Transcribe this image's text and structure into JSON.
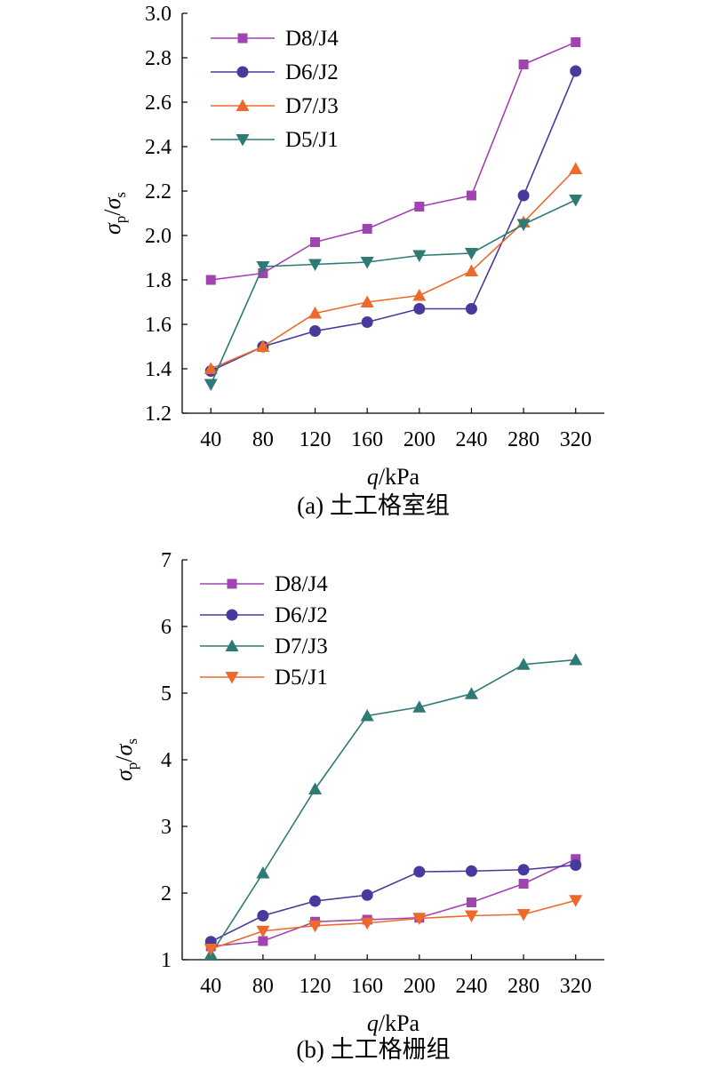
{
  "chart_data": [
    {
      "type": "line",
      "caption": "(a) 土工格室组",
      "xlabel": "q/kPa",
      "ylabel": "σp/σs",
      "categories": [
        40,
        80,
        120,
        160,
        200,
        240,
        280,
        320
      ],
      "ylim": [
        1.2,
        3.0
      ],
      "yticks": [
        "1.2",
        "1.4",
        "1.6",
        "1.8",
        "2.0",
        "2.2",
        "2.4",
        "2.6",
        "2.8",
        "3.0"
      ],
      "legend_position": "top-left",
      "grid": false,
      "series": [
        {
          "name": "D8/J4",
          "color": "#a044b0",
          "marker": "square",
          "values": [
            1.8,
            1.83,
            1.97,
            2.03,
            2.13,
            2.18,
            2.77,
            2.87
          ]
        },
        {
          "name": "D6/J2",
          "color": "#483a9c",
          "marker": "circle",
          "values": [
            1.39,
            1.5,
            1.57,
            1.61,
            1.67,
            1.67,
            2.18,
            2.74
          ]
        },
        {
          "name": "D7/J3",
          "color": "#ec6a2b",
          "marker": "triangle-up",
          "values": [
            1.4,
            1.5,
            1.65,
            1.7,
            1.73,
            1.84,
            2.06,
            2.3
          ]
        },
        {
          "name": "D5/J1",
          "color": "#2e7a74",
          "marker": "triangle-down",
          "values": [
            1.33,
            1.86,
            1.87,
            1.88,
            1.91,
            1.92,
            2.05,
            2.16
          ]
        }
      ]
    },
    {
      "type": "line",
      "caption": "(b) 土工格栅组",
      "xlabel": "q/kPa",
      "ylabel": "σp/σs",
      "categories": [
        40,
        80,
        120,
        160,
        200,
        240,
        280,
        320
      ],
      "ylim": [
        1,
        7
      ],
      "yticks": [
        "1",
        "2",
        "3",
        "4",
        "5",
        "6",
        "7"
      ],
      "legend_position": "top-left",
      "grid": false,
      "series": [
        {
          "name": "D8/J4",
          "color": "#a044b0",
          "marker": "square",
          "values": [
            1.2,
            1.28,
            1.57,
            1.6,
            1.63,
            1.86,
            2.14,
            2.51
          ]
        },
        {
          "name": "D6/J2",
          "color": "#483a9c",
          "marker": "circle",
          "values": [
            1.27,
            1.66,
            1.88,
            1.97,
            2.32,
            2.33,
            2.35,
            2.42
          ]
        },
        {
          "name": "D7/J3",
          "color": "#2e7a74",
          "marker": "triangle-up",
          "values": [
            1.08,
            2.3,
            3.56,
            4.66,
            4.79,
            4.99,
            5.43,
            5.5
          ]
        },
        {
          "name": "D5/J1",
          "color": "#ec6a2b",
          "marker": "triangle-down",
          "values": [
            1.16,
            1.43,
            1.51,
            1.55,
            1.62,
            1.66,
            1.68,
            1.89
          ]
        }
      ]
    }
  ]
}
